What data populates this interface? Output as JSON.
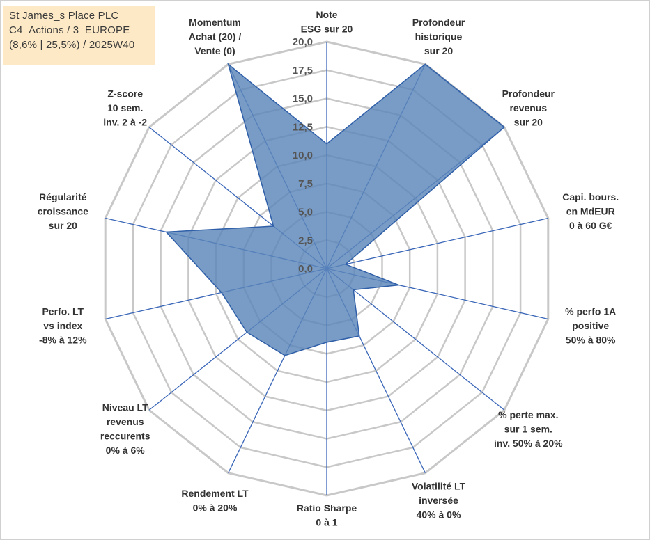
{
  "header": {
    "lines": [
      "St James_s Place PLC",
      "C4_Actions / 3_EUROPE",
      "(8,6% | 25,5%) / 2025W40"
    ]
  },
  "colors": {
    "fill": "#5b86b9",
    "stroke": "#2f5fa8",
    "grid": "#c8c8c8",
    "spoke": "#3a66b8",
    "title_bg": "#fde9c5"
  },
  "chart_data": {
    "type": "radar",
    "title": "",
    "range": [
      0,
      20
    ],
    "tick_values": [
      0,
      2.5,
      5,
      7.5,
      10,
      12.5,
      15,
      17.5,
      20
    ],
    "tick_labels": [
      "0,0",
      "2,5",
      "5,0",
      "7,5",
      "10,0",
      "12,5",
      "15,0",
      "17,5",
      "20,0"
    ],
    "grid": true,
    "axes": [
      {
        "label": [
          "Note",
          "ESG sur 20"
        ],
        "value": 11.0
      },
      {
        "label": [
          "Profondeur",
          "historique",
          "sur 20"
        ],
        "value": 20.0
      },
      {
        "label": [
          "Profondeur",
          "revenus",
          "sur 20"
        ],
        "value": 20.0
      },
      {
        "label": [
          "Capi. bours.",
          "en MdEUR",
          "0 à 60 G€"
        ],
        "value": 1.7
      },
      {
        "label": [
          "% perfo 1A",
          "positive",
          "50% à 80%"
        ],
        "value": 6.5
      },
      {
        "label": [
          "% perte max.",
          "sur 1 sem.",
          "inv. 50% à 20%"
        ],
        "value": 3.0
      },
      {
        "label": [
          "Volatilité LT",
          "inversée",
          "40% à 0%"
        ],
        "value": 6.6
      },
      {
        "label": [
          "Ratio Sharpe",
          "0 à 1"
        ],
        "value": 6.5
      },
      {
        "label": [
          "Rendement LT",
          "0% à 20%"
        ],
        "value": 8.5
      },
      {
        "label": [
          "Niveau LT",
          "revenus",
          "reccurents",
          "0% à 6%"
        ],
        "value": 9.0
      },
      {
        "label": [
          "Perfo. LT",
          "vs index",
          "-8% à 12%"
        ],
        "value": 9.5
      },
      {
        "label": [
          "Régularité",
          "croissance",
          "sur 20"
        ],
        "value": 14.5
      },
      {
        "label": [
          "Z-score",
          "10 sem.",
          "inv. 2 à -2"
        ],
        "value": 6.0
      },
      {
        "label": [
          "Momentum",
          "Achat (20) /",
          "Vente (0)"
        ],
        "value": 20.0
      }
    ]
  }
}
